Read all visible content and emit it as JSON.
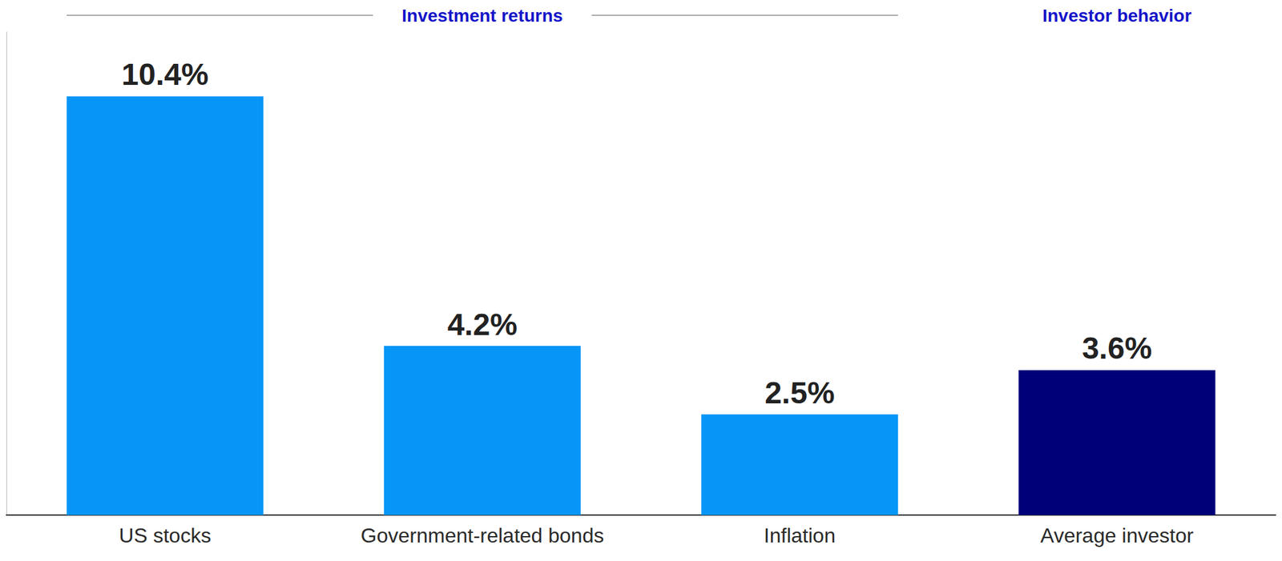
{
  "chart_data": {
    "type": "bar",
    "categories": [
      "US stocks",
      "Government-related bonds",
      "Inflation",
      "Average investor"
    ],
    "values": [
      10.4,
      4.2,
      2.5,
      3.6
    ],
    "value_labels": [
      "10.4%",
      "4.2%",
      "2.5%",
      "3.6%"
    ],
    "colors": [
      "#0796F7",
      "#0796F7",
      "#0796F7",
      "#000078"
    ],
    "ylim": [
      0,
      12
    ],
    "data_labels": true,
    "tick_labels": "x",
    "groups": [
      {
        "label": "Investment returns",
        "members": [
          "US stocks",
          "Government-related bonds",
          "Inflation"
        ]
      },
      {
        "label": "Investor behavior",
        "members": [
          "Average investor"
        ]
      }
    ]
  }
}
